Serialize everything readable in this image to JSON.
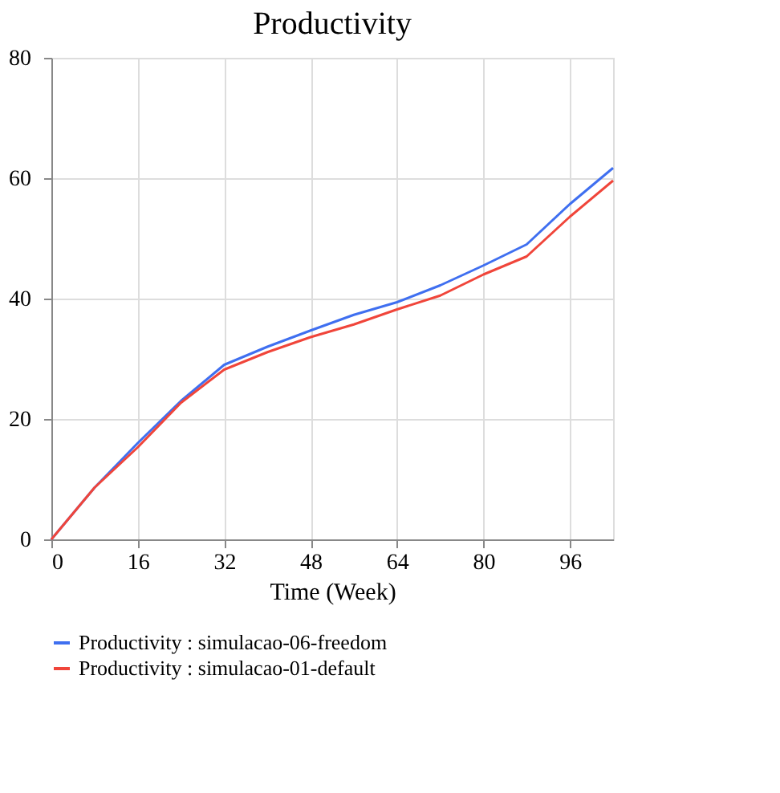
{
  "chart_data": {
    "type": "line",
    "title": "Productivity",
    "xlabel": "Time (Week)",
    "x": [
      0,
      8,
      16,
      24,
      32,
      40,
      48,
      56,
      64,
      72,
      80,
      88,
      96,
      104
    ],
    "series": [
      {
        "name": "Productivity : simulacao-06-freedom",
        "color": "#3f6ff0",
        "values": [
          0,
          8.6,
          16,
          23,
          29,
          32,
          34.7,
          37.3,
          39.4,
          42.2,
          45.5,
          49,
          55.7,
          61.7
        ]
      },
      {
        "name": "Productivity : simulacao-01-default",
        "color": "#f0453a",
        "values": [
          0,
          8.6,
          15.3,
          22.7,
          28.2,
          31.1,
          33.6,
          35.7,
          38.2,
          40.5,
          44,
          47,
          53.6,
          59.6
        ]
      }
    ],
    "xlim": [
      0,
      104
    ],
    "xticks": [
      0,
      16,
      32,
      48,
      64,
      80,
      96
    ],
    "ylim": [
      0,
      80
    ],
    "yticks": [
      0,
      20,
      40,
      60,
      80
    ],
    "grid": true,
    "legend": "bottom",
    "marker": "none",
    "line_style": "solid"
  }
}
